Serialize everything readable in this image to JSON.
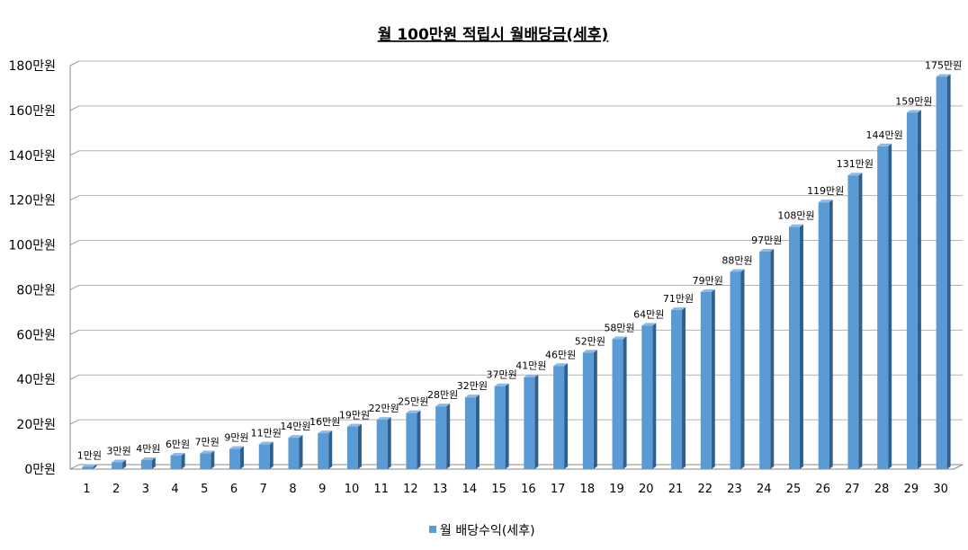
{
  "chart_data": {
    "type": "bar",
    "title": "월 100만원 적립시 월배당금(세후)",
    "categories": [
      "1",
      "2",
      "3",
      "4",
      "5",
      "6",
      "7",
      "8",
      "9",
      "10",
      "11",
      "12",
      "13",
      "14",
      "15",
      "16",
      "17",
      "18",
      "19",
      "20",
      "21",
      "22",
      "23",
      "24",
      "25",
      "26",
      "27",
      "28",
      "29",
      "30"
    ],
    "series": [
      {
        "name": "월 배당수익(세후)",
        "values": [
          1,
          3,
          4,
          6,
          7,
          9,
          11,
          14,
          16,
          19,
          22,
          25,
          28,
          32,
          37,
          41,
          46,
          52,
          58,
          64,
          71,
          79,
          88,
          97,
          108,
          119,
          131,
          144,
          159,
          175
        ],
        "labels": [
          "1만원",
          "3만원",
          "4만원",
          "6만원",
          "7만원",
          "9만원",
          "11만원",
          "14만원",
          "16만원",
          "19만원",
          "22만원",
          "25만원",
          "28만원",
          "32만원",
          "37만원",
          "41만원",
          "46만원",
          "52만원",
          "58만원",
          "64만원",
          "71만원",
          "79만원",
          "88만원",
          "97만원",
          "108만원",
          "119만원",
          "131만원",
          "144만원",
          "159만원",
          "175만원"
        ],
        "color": "#5b9bd5"
      }
    ],
    "ylim": [
      0,
      180
    ],
    "yticks": [
      0,
      20,
      40,
      60,
      80,
      100,
      120,
      140,
      160,
      180
    ],
    "ytick_labels": [
      "0만원",
      "20만원",
      "40만원",
      "60만원",
      "80만원",
      "100만원",
      "120만원",
      "140만원",
      "160만원",
      "180만원"
    ],
    "grid": true,
    "legend": "bottom",
    "three_d": true
  }
}
